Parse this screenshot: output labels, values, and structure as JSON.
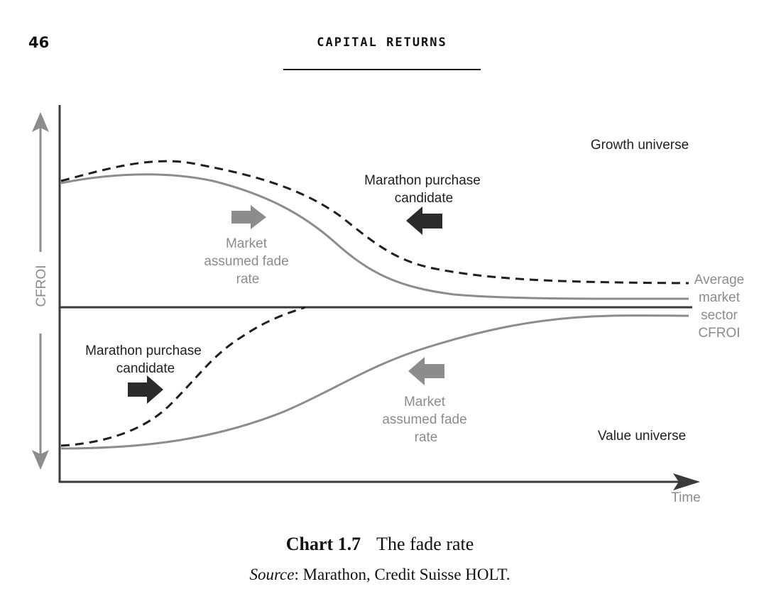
{
  "header": {
    "page_number": "46",
    "running_head": "CAPITAL RETURNS"
  },
  "diagram": {
    "y_axis_label": "CFROI",
    "x_axis_label": "Time",
    "growth_universe": "Growth universe",
    "value_universe": "Value universe",
    "average_line_label": [
      "Average",
      "market",
      "sector",
      "CFROI"
    ],
    "growth_purchase_label": [
      "Marathon purchase",
      "candidate"
    ],
    "value_purchase_label": [
      "Marathon purchase",
      "candidate"
    ],
    "growth_fade_label": [
      "Market",
      "assumed fade",
      "rate"
    ],
    "value_fade_label": [
      "Market",
      "assumed fade",
      "rate"
    ],
    "colors": {
      "axis": "#3a3a3a",
      "solid_curve": "#8c8c8c",
      "dashed_curve": "#1f1f1f",
      "dark_arrow": "#2b2b2b",
      "grey_arrow": "#8c8c8c"
    }
  },
  "caption": {
    "number": "Chart 1.7",
    "title": "The fade rate",
    "source_label": "Source",
    "source_text": ": Marathon, Credit Suisse HOLT."
  }
}
